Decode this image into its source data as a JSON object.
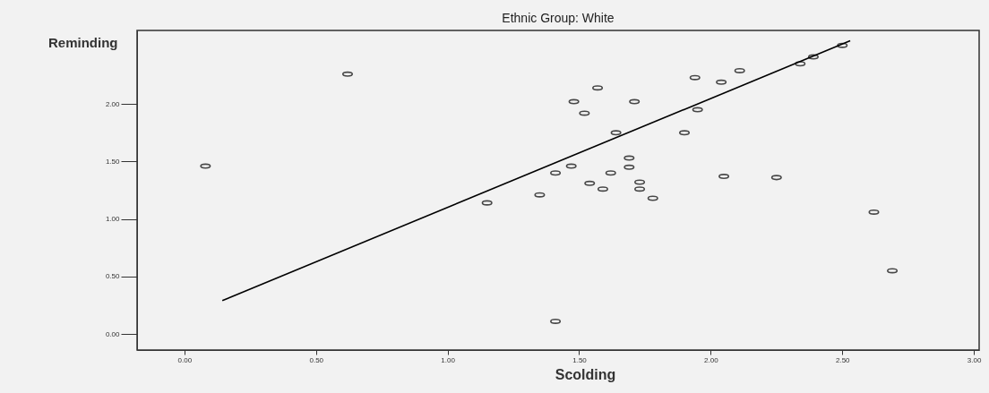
{
  "chart_data": {
    "type": "scatter",
    "title": "Ethnic Group: White",
    "xlabel": "Scolding",
    "ylabel": "Reminding",
    "xlim": [
      -0.18,
      3.02
    ],
    "ylim": [
      -0.14,
      2.64
    ],
    "xticks": [
      {
        "value": 0,
        "label": "0.00"
      },
      {
        "value": 0.5,
        "label": "0.50"
      },
      {
        "value": 1,
        "label": "1.00"
      },
      {
        "value": 1.5,
        "label": "1.50"
      },
      {
        "value": 2,
        "label": "2.00"
      },
      {
        "value": 2.5,
        "label": "2.50"
      },
      {
        "value": 3,
        "label": "3.00"
      }
    ],
    "yticks": [
      {
        "value": 0,
        "label": "0.00"
      },
      {
        "value": 0.5,
        "label": "0.50"
      },
      {
        "value": 1,
        "label": "1.00"
      },
      {
        "value": 1.5,
        "label": "1.50"
      },
      {
        "value": 2,
        "label": "2.00"
      }
    ],
    "grid": false,
    "series": [
      {
        "color": "#000000",
        "marker": "circle",
        "x": [
          0.08,
          0.62,
          2.5,
          2.39,
          2.34,
          2.11,
          1.94,
          2.04,
          1.57,
          1.48,
          1.71,
          1.52,
          1.95,
          1.64,
          1.9,
          1.69,
          1.69,
          1.47,
          1.41,
          1.62,
          2.05,
          2.25,
          1.54,
          1.73,
          1.59,
          1.73,
          1.35,
          1.15,
          1.78,
          2.62,
          2.69,
          1.41
        ],
        "values": [
          1.46,
          2.26,
          2.51,
          2.41,
          2.35,
          2.29,
          2.23,
          2.19,
          2.14,
          2.02,
          2.02,
          1.92,
          1.95,
          1.75,
          1.75,
          1.53,
          1.45,
          1.46,
          1.4,
          1.4,
          1.37,
          1.36,
          1.31,
          1.32,
          1.26,
          1.26,
          1.21,
          1.14,
          1.18,
          1.06,
          0.55,
          0.11
        ]
      },
      {
        "type": "line",
        "color": "#000000",
        "x": [
          0.144,
          2.53
        ],
        "values": [
          0.29,
          2.55
        ]
      }
    ]
  }
}
